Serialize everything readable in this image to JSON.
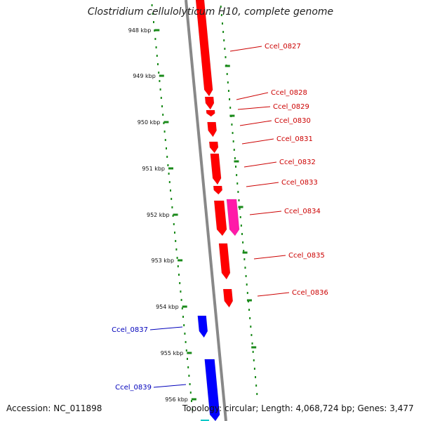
{
  "title": "Clostridium cellulolyticum H10, complete genome",
  "footer": {
    "accession": "Accession: NC_011898",
    "summary": "Topology: circular; Length: 4,068,724 bp; Genes: 3,477"
  },
  "colors": {
    "forward_gene": "#ff0000",
    "forward_gene_alt": "#ff1aa8",
    "reverse_gene": "#0000ff",
    "reverse_gene_alt": "#00c8c8",
    "backbone": "#888888",
    "tick": "#1a8a1a",
    "forward_label": "#cc0000",
    "reverse_label": "#0000bb"
  },
  "scale_ticks": [
    "948 kbp",
    "949 kbp",
    "950 kbp",
    "951 kbp",
    "952 kbp",
    "953 kbp",
    "954 kbp",
    "955 kbp",
    "956 kbp"
  ],
  "forward_genes": [
    "Ccel_0827",
    "Ccel_0828",
    "Ccel_0829",
    "Ccel_0830",
    "Ccel_0831",
    "Ccel_0832",
    "Ccel_0833",
    "Ccel_0834",
    "Ccel_0835",
    "Ccel_0836"
  ],
  "reverse_genes": [
    "Ccel_0837",
    "Ccel_0839"
  ]
}
